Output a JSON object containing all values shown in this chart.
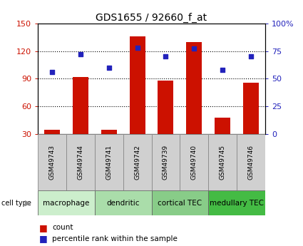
{
  "title": "GDS1655 / 92660_f_at",
  "samples": [
    "GSM49743",
    "GSM49744",
    "GSM49741",
    "GSM49742",
    "GSM49739",
    "GSM49740",
    "GSM49745",
    "GSM49746"
  ],
  "counts": [
    35,
    92,
    35,
    136,
    88,
    130,
    48,
    86
  ],
  "percentiles": [
    56,
    72,
    60,
    78,
    70,
    77,
    58,
    70
  ],
  "ylim_left": [
    30,
    150
  ],
  "ylim_right": [
    0,
    100
  ],
  "yticks_left": [
    30,
    60,
    90,
    120,
    150
  ],
  "yticks_right": [
    0,
    25,
    50,
    75,
    100
  ],
  "ytick_labels_right": [
    "0",
    "25",
    "50",
    "75",
    "100%"
  ],
  "hlines": [
    60,
    90,
    120
  ],
  "bar_color": "#cc1100",
  "dot_color": "#2222bb",
  "tick_color_left": "#cc1100",
  "tick_color_right": "#2222bb",
  "sample_box_color": "#d0d0d0",
  "group_configs": [
    {
      "label": "macrophage",
      "start": 0,
      "end": 2,
      "color": "#cceecc"
    },
    {
      "label": "dendritic",
      "start": 2,
      "end": 4,
      "color": "#aaddaa"
    },
    {
      "label": "cortical TEC",
      "start": 4,
      "end": 6,
      "color": "#88cc88"
    },
    {
      "label": "medullary TEC",
      "start": 6,
      "end": 8,
      "color": "#44bb44"
    }
  ],
  "cell_type_label": "cell type",
  "legend_count_label": "count",
  "legend_percentile_label": "percentile rank within the sample",
  "title_fontsize": 10,
  "axis_tick_fontsize": 8,
  "sample_fontsize": 6.5,
  "group_fontsize": 7.5,
  "legend_fontsize": 7.5
}
